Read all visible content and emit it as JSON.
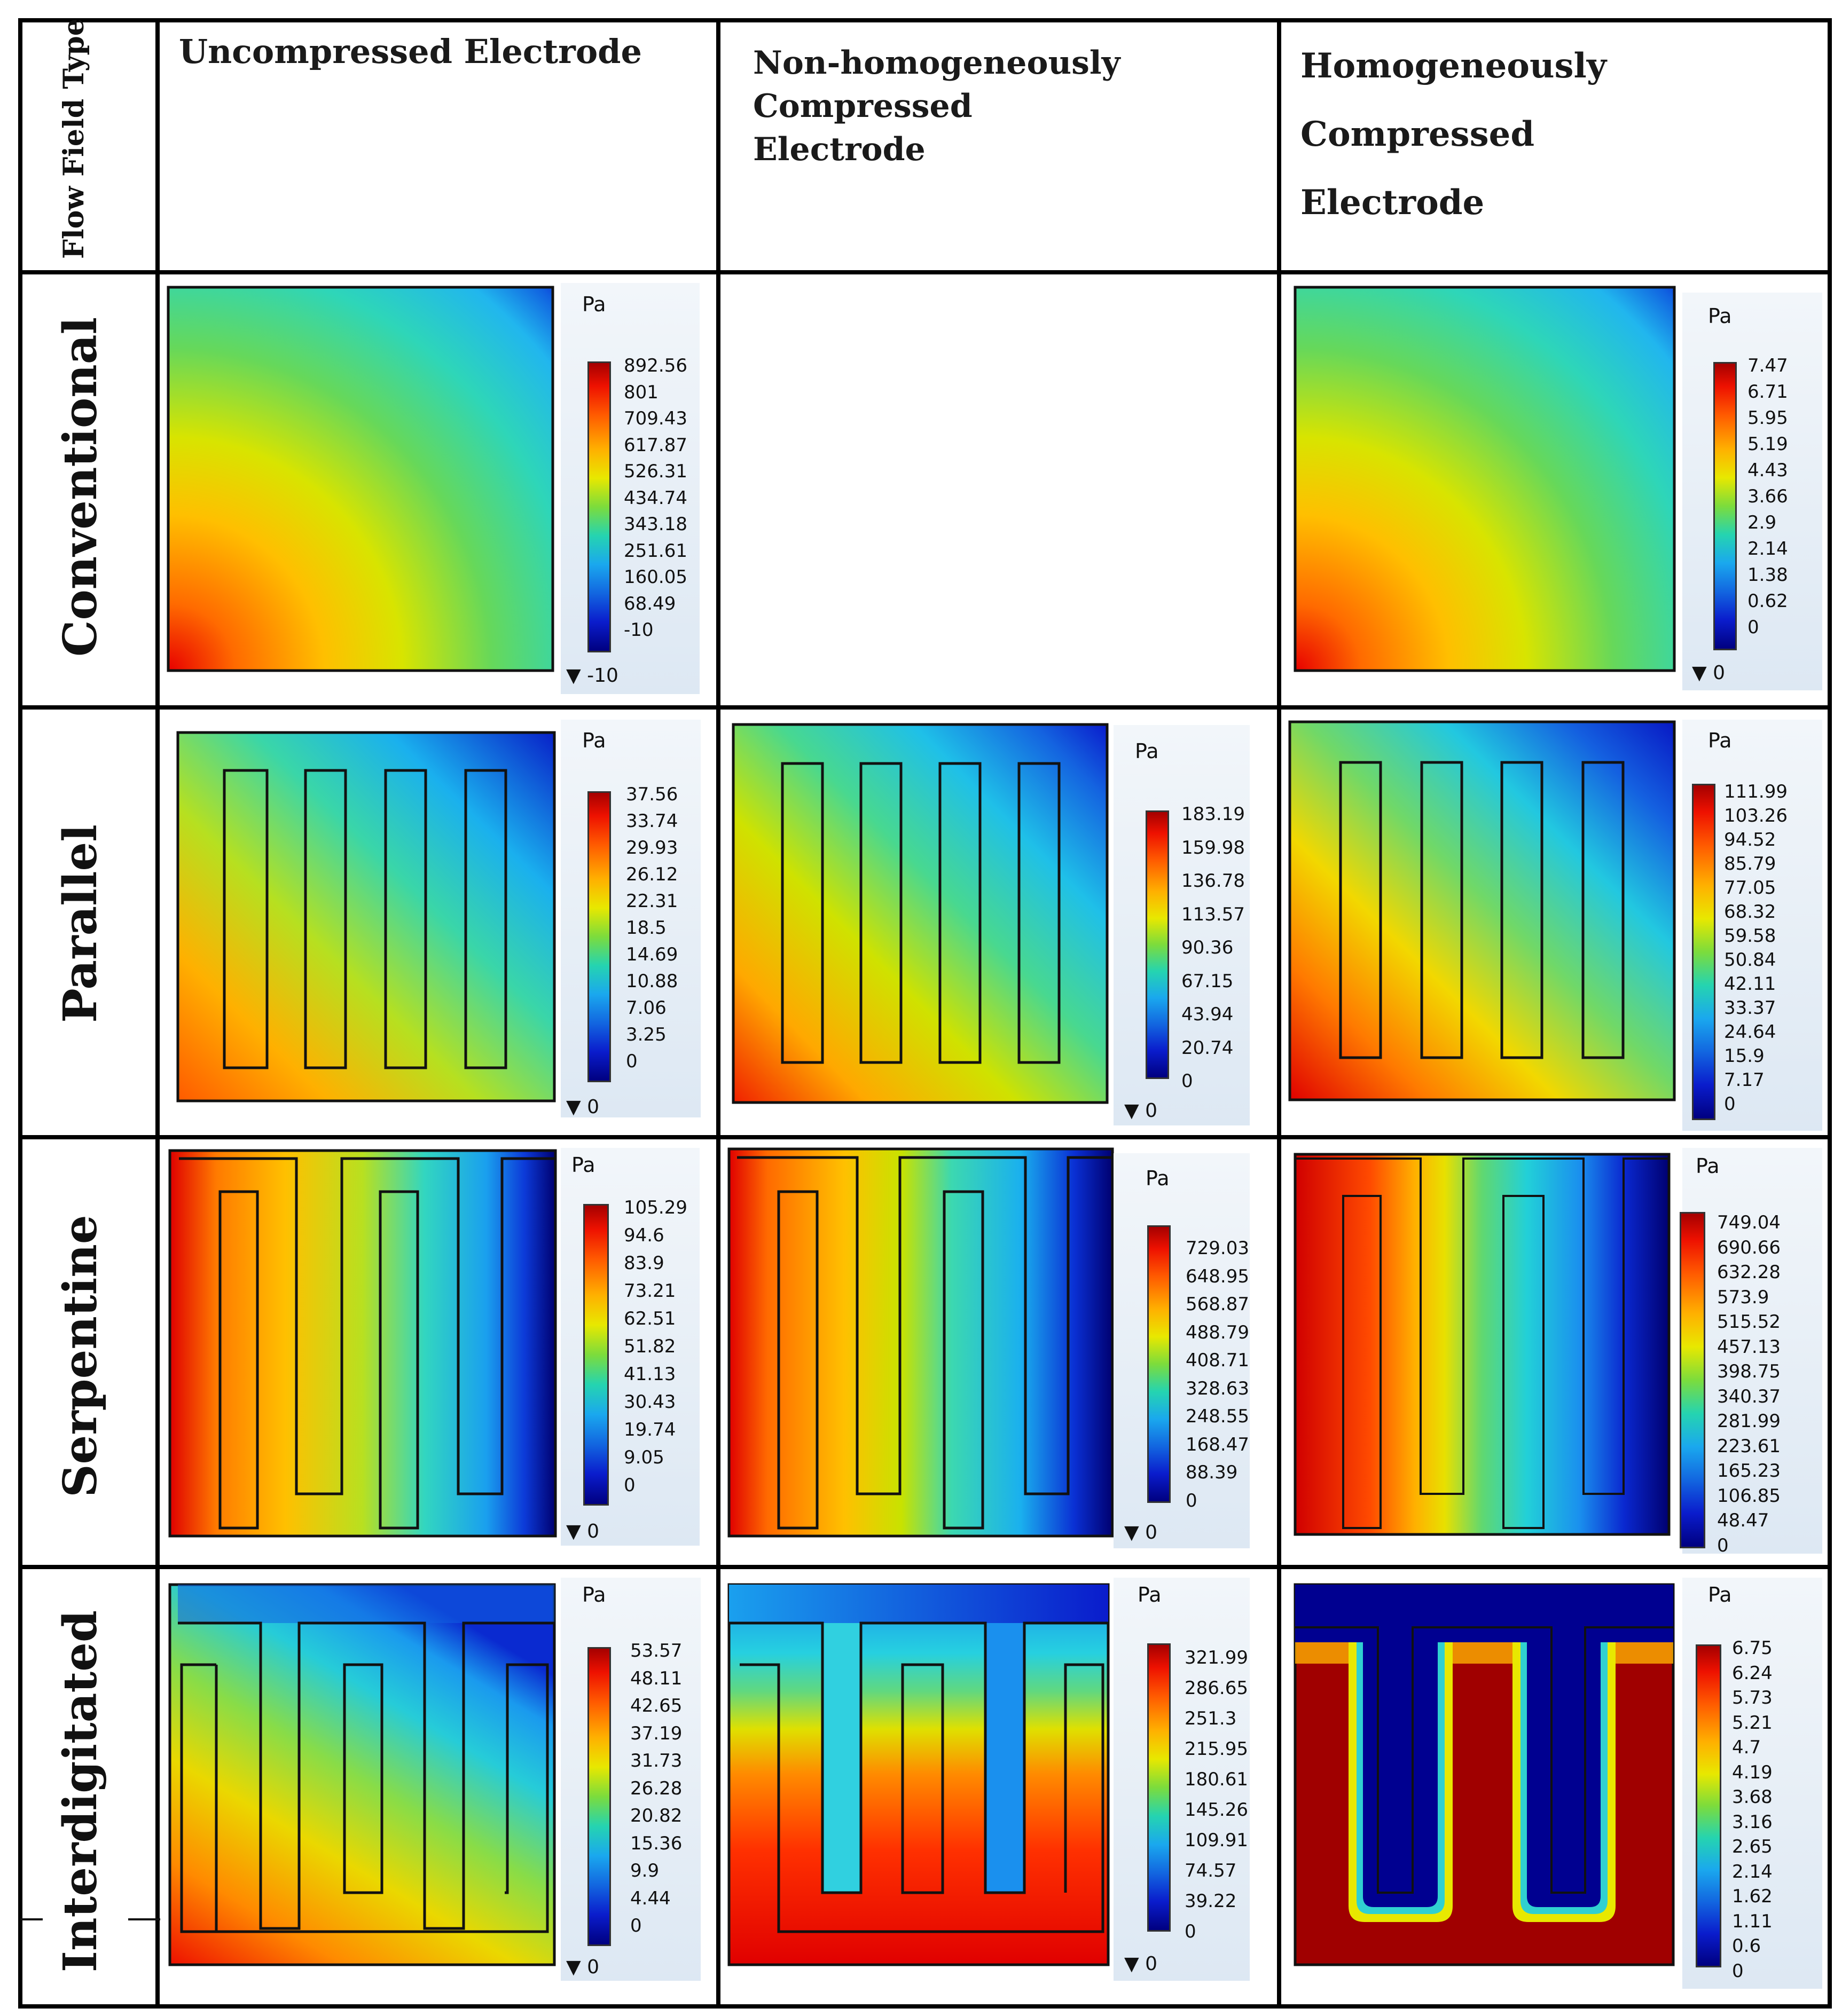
{
  "header": {
    "corner_label": "Flow Field Type",
    "columns": [
      "Uncompressed Electrode",
      "Non-homogeneously Compressed Electrode",
      "Homogeneously Compressed Electrode"
    ]
  },
  "rows": [
    "Conventional",
    "Parallel",
    "Serpentine",
    "Interdigitated"
  ],
  "unit": "Pa",
  "colorbars": {
    "conventional_uncompressed": {
      "ticks": [
        "892.56",
        "801",
        "709.43",
        "617.87",
        "526.31",
        "434.74",
        "343.18",
        "251.61",
        "160.05",
        "68.49",
        "-10"
      ],
      "min": "-10"
    },
    "conventional_homogeneous": {
      "ticks": [
        "7.47",
        "6.71",
        "5.95",
        "5.19",
        "4.43",
        "3.66",
        "2.9",
        "2.14",
        "1.38",
        "0.62",
        "0"
      ],
      "min": "0"
    },
    "parallel_uncompressed": {
      "ticks": [
        "37.56",
        "33.74",
        "29.93",
        "26.12",
        "22.31",
        "18.5",
        "14.69",
        "10.88",
        "7.06",
        "3.25",
        "0"
      ],
      "min": "0"
    },
    "parallel_nonhomogeneous": {
      "ticks": [
        "183.19",
        "159.98",
        "136.78",
        "113.57",
        "90.36",
        "67.15",
        "43.94",
        "20.74",
        "0"
      ],
      "min": "0"
    },
    "parallel_homogeneous": {
      "ticks": [
        "111.99",
        "103.26",
        "94.52",
        "85.79",
        "77.05",
        "68.32",
        "59.58",
        "50.84",
        "42.11",
        "33.37",
        "24.64",
        "15.9",
        "7.17",
        "0"
      ],
      "min": "0"
    },
    "serpentine_uncompressed": {
      "ticks": [
        "105.29",
        "94.6",
        "83.9",
        "73.21",
        "62.51",
        "51.82",
        "41.13",
        "30.43",
        "19.74",
        "9.05",
        "0"
      ],
      "min": "0"
    },
    "serpentine_nonhomogeneous": {
      "ticks": [
        "729.03",
        "648.95",
        "568.87",
        "488.79",
        "408.71",
        "328.63",
        "248.55",
        "168.47",
        "88.39",
        "0"
      ],
      "min": "0"
    },
    "serpentine_homogeneous": {
      "ticks": [
        "749.04",
        "690.66",
        "632.28",
        "573.9",
        "515.52",
        "457.13",
        "398.75",
        "340.37",
        "281.99",
        "223.61",
        "165.23",
        "106.85",
        "48.47",
        "0"
      ],
      "min": "0"
    },
    "interdigitated_uncompressed": {
      "ticks": [
        "53.57",
        "48.11",
        "42.65",
        "37.19",
        "31.73",
        "26.28",
        "20.82",
        "15.36",
        "9.9",
        "4.44",
        "0"
      ],
      "min": "0"
    },
    "interdigitated_nonhomogeneous": {
      "ticks": [
        "321.99",
        "286.65",
        "251.3",
        "215.95",
        "180.61",
        "145.26",
        "109.91",
        "74.57",
        "39.22",
        "0"
      ],
      "min": "0"
    },
    "interdigitated_homogeneous": {
      "ticks": [
        "6.75",
        "6.24",
        "5.73",
        "5.21",
        "4.7",
        "4.19",
        "3.68",
        "3.16",
        "2.65",
        "2.14",
        "1.62",
        "1.11",
        "0.6",
        "0"
      ],
      "min": "0"
    }
  },
  "min_marker": "▼",
  "colors": {
    "red": "#d40000",
    "orange": "#ff7a00",
    "yellow": "#f0e000",
    "green": "#7cdc3c",
    "cyan": "#25d4d0",
    "blue": "#1266e0",
    "navy": "#000090",
    "darkred": "#a00000"
  }
}
